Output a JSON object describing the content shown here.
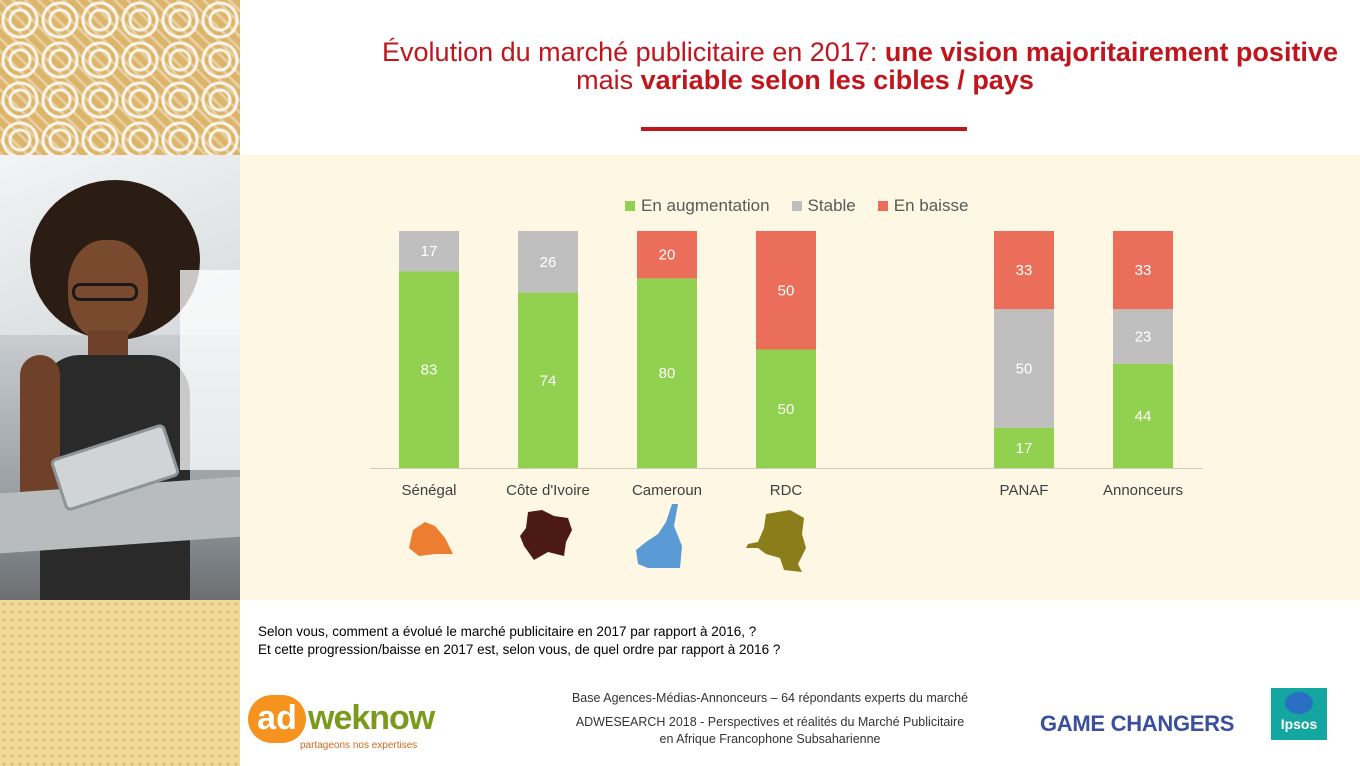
{
  "title": {
    "line1_regular": "Évolution du marché publicitaire en 2017: ",
    "line1_bold": "une vision majoritairement positive",
    "line2_regular": "mais ",
    "line2_bold": "variable selon les cibles / pays"
  },
  "colors": {
    "increase": "#92d050",
    "stable": "#bfbfbf",
    "decrease": "#eb6e5a",
    "title_red": "#c0151c",
    "map_senegal": "#ed7d31",
    "map_cote_ivoire": "#4b1a12",
    "map_cameroun": "#5b9bd5",
    "map_rdc": "#8b7d1a"
  },
  "chart_data": {
    "type": "bar",
    "stacked": true,
    "normalized": true,
    "categories": [
      "Sénégal",
      "Côte d'Ivoire",
      "Cameroun",
      "RDC",
      "PANAF",
      "Annonceurs"
    ],
    "series": [
      {
        "name": "En augmentation",
        "values": [
          83,
          74,
          80,
          50,
          17,
          44
        ]
      },
      {
        "name": "Stable",
        "values": [
          17,
          26,
          0,
          0,
          50,
          23
        ]
      },
      {
        "name": "En baisse",
        "values": [
          0,
          0,
          20,
          50,
          33,
          33
        ]
      }
    ],
    "legend": [
      "En augmentation",
      "Stable",
      "En baisse"
    ],
    "legend_position": "top",
    "ylim": [
      0,
      100
    ],
    "grid": false,
    "data_labels": true
  },
  "maps": [
    {
      "country": "Sénégal",
      "icon": "senegal-map-icon"
    },
    {
      "country": "Côte d'Ivoire",
      "icon": "cote-ivoire-map-icon"
    },
    {
      "country": "Cameroun",
      "icon": "cameroun-map-icon"
    },
    {
      "country": "RDC",
      "icon": "rdc-map-icon"
    }
  ],
  "question": {
    "line1": "Selon vous, comment a évolué le marché publicitaire en 2017 par rapport à 2016,  ?",
    "line2": "Et cette progression/baisse en 2017 est, selon vous, de quel ordre par rapport à 2016 ?"
  },
  "footer": {
    "base": "Base Agences-Médias-Annonceurs  – 64  répondants experts du marché",
    "study_line1": "ADWESEARCH 2018 - Perspectives et réalités du Marché Publicitaire",
    "study_line2": "en Afrique Francophone Subsaharienne"
  },
  "logos": {
    "adweknow_ad": "ad",
    "adweknow_weknow": "weknow",
    "adweknow_tagline": "partageons nos expertises",
    "game_changers": "GAME CHANGERS",
    "ipsos": "Ipsos"
  }
}
